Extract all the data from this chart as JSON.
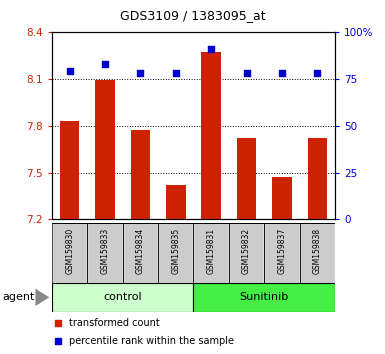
{
  "title": "GDS3109 / 1383095_at",
  "samples": [
    "GSM159830",
    "GSM159833",
    "GSM159834",
    "GSM159835",
    "GSM159831",
    "GSM159832",
    "GSM159837",
    "GSM159838"
  ],
  "bar_values": [
    7.83,
    8.09,
    7.77,
    7.42,
    8.27,
    7.72,
    7.47,
    7.72
  ],
  "percentile_values": [
    79,
    83,
    78,
    78,
    91,
    78,
    78,
    78
  ],
  "bar_bottom": 7.2,
  "ylim_left": [
    7.2,
    8.4
  ],
  "ylim_right": [
    0,
    100
  ],
  "yticks_left": [
    7.2,
    7.5,
    7.8,
    8.1,
    8.4
  ],
  "yticks_right": [
    0,
    25,
    50,
    75,
    100
  ],
  "ytick_labels_left": [
    "7.2",
    "7.5",
    "7.8",
    "8.1",
    "8.4"
  ],
  "ytick_labels_right": [
    "0",
    "25",
    "50",
    "75",
    "100%"
  ],
  "groups": [
    {
      "label": "control",
      "indices": [
        0,
        1,
        2,
        3
      ],
      "color": "#ccffcc"
    },
    {
      "label": "Sunitinib",
      "indices": [
        4,
        5,
        6,
        7
      ],
      "color": "#44ee44"
    }
  ],
  "bar_color": "#cc2200",
  "percentile_color": "#0000cc",
  "bar_width": 0.55,
  "agent_label": "agent",
  "legend_items": [
    {
      "label": "transformed count",
      "color": "#cc2200",
      "marker": "s"
    },
    {
      "label": "percentile rank within the sample",
      "color": "#0000cc",
      "marker": "s"
    }
  ],
  "grid_color": "black",
  "tick_color_left": "#cc2200",
  "tick_color_right": "#0000cc",
  "bg_label": "#cccccc",
  "plot_border_color": "black",
  "title_fontsize": 9
}
